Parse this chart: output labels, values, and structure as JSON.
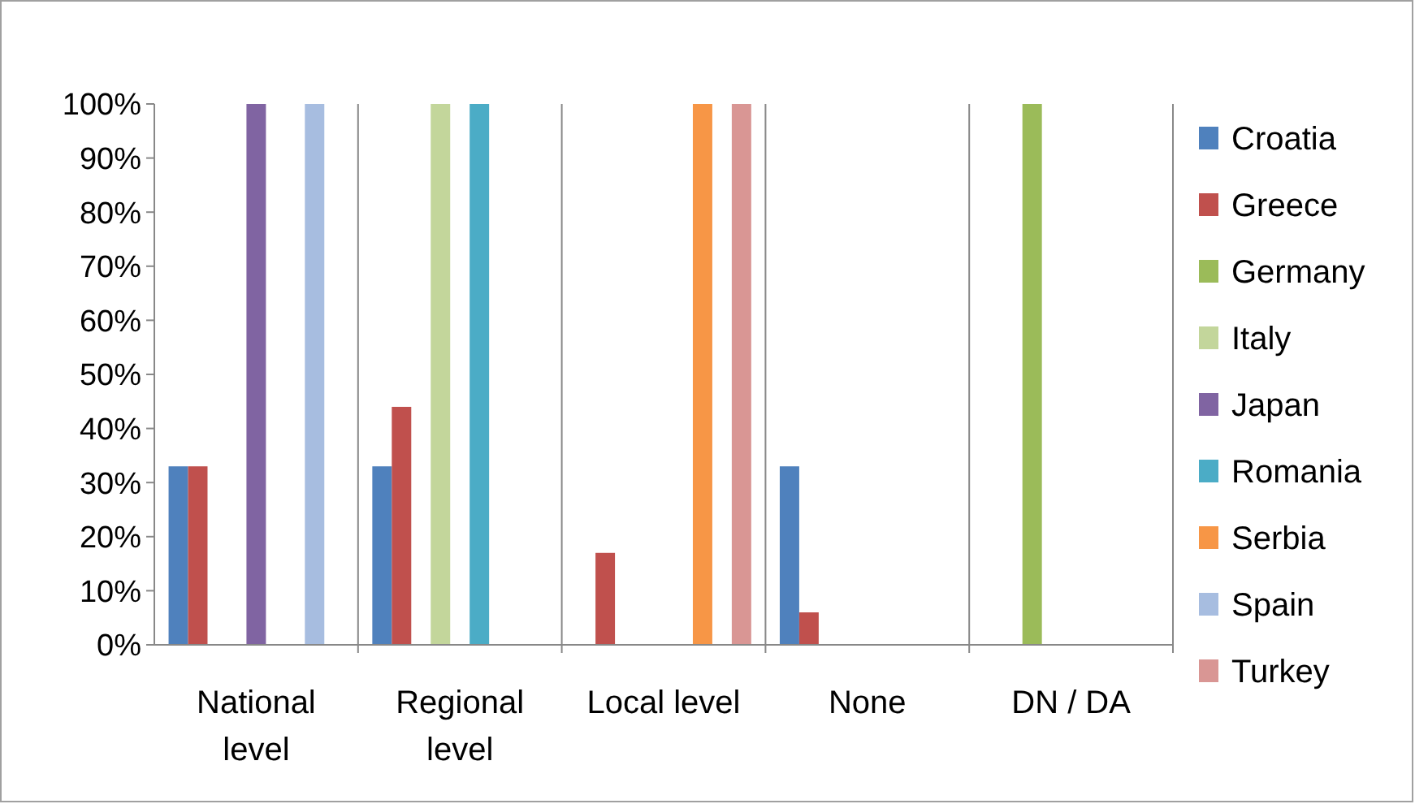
{
  "chart_data": {
    "type": "bar",
    "categories": [
      "National level",
      "Regional level",
      "Local level",
      "None",
      "DN / DA"
    ],
    "series": [
      {
        "name": "Croatia",
        "color": "#4f81bd",
        "values": [
          33,
          33,
          null,
          33,
          null
        ]
      },
      {
        "name": "Greece",
        "color": "#c0504d",
        "values": [
          33,
          44,
          17,
          6,
          null
        ]
      },
      {
        "name": "Germany",
        "color": "#9bbb59",
        "values": [
          null,
          null,
          null,
          null,
          100
        ]
      },
      {
        "name": "Italy",
        "color": "#c3d69b",
        "values": [
          null,
          100,
          null,
          null,
          null
        ]
      },
      {
        "name": "Japan",
        "color": "#8064a2",
        "values": [
          100,
          null,
          null,
          null,
          null
        ]
      },
      {
        "name": "Romania",
        "color": "#4bacc6",
        "values": [
          null,
          100,
          null,
          null,
          null
        ]
      },
      {
        "name": "Serbia",
        "color": "#f79646",
        "values": [
          null,
          null,
          100,
          null,
          null
        ]
      },
      {
        "name": "Spain",
        "color": "#a7bde0",
        "values": [
          100,
          null,
          null,
          null,
          null
        ]
      },
      {
        "name": "Turkey",
        "color": "#d99694",
        "values": [
          null,
          null,
          100,
          null,
          null
        ]
      }
    ],
    "ylim": [
      0,
      100
    ],
    "yticks": [
      {
        "value": 0,
        "label": "0%"
      },
      {
        "value": 10,
        "label": "10%"
      },
      {
        "value": 20,
        "label": "20%"
      },
      {
        "value": 30,
        "label": "30%"
      },
      {
        "value": 40,
        "label": "40%"
      },
      {
        "value": 50,
        "label": "50%"
      },
      {
        "value": 60,
        "label": "60%"
      },
      {
        "value": 70,
        "label": "70%"
      },
      {
        "value": 80,
        "label": "80%"
      },
      {
        "value": 90,
        "label": "90%"
      },
      {
        "value": 100,
        "label": "100%"
      }
    ],
    "grid": "x",
    "legend": "right"
  }
}
